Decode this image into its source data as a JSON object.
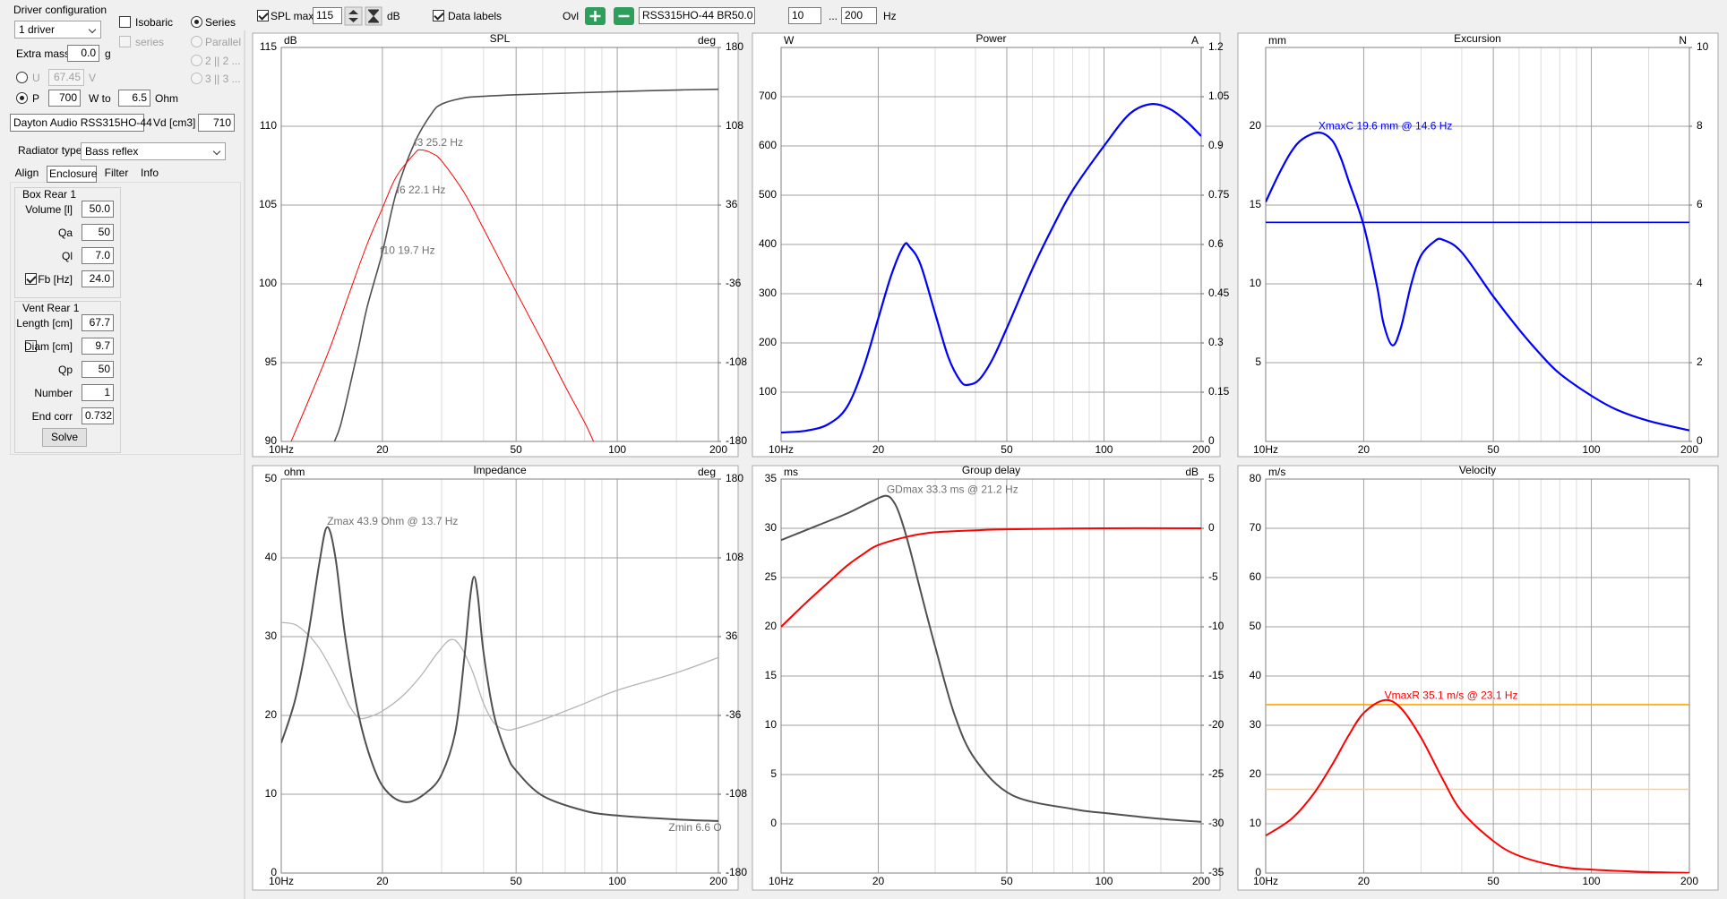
{
  "toolbar": {
    "spl_max": {
      "label": "SPL max",
      "checked": true,
      "value": "115",
      "unit": "dB"
    },
    "data_labels": {
      "label": "Data labels",
      "checked": true
    },
    "overlay": {
      "label": "Ovl",
      "name": "RSS315HO-44 BR50.0"
    },
    "freq_range": {
      "from": "10",
      "separator": "...",
      "to": "200",
      "unit": "Hz"
    }
  },
  "driver_config": {
    "title": "Driver configuration",
    "drivers": "1 driver",
    "isobaric": {
      "label": "Isobaric",
      "checked": false,
      "enabled": true
    },
    "series_check": {
      "label": "series",
      "checked": false,
      "enabled": false
    },
    "wiring": [
      {
        "label": "Series",
        "selected": true,
        "enabled": true
      },
      {
        "label": "Parallel",
        "selected": false,
        "enabled": false
      },
      {
        "label": "2 || 2 ...",
        "selected": false,
        "enabled": false
      },
      {
        "label": "3 || 3 ...",
        "selected": false,
        "enabled": false
      }
    ],
    "extra_mass": {
      "label": "Extra mass",
      "value": "0.0",
      "unit": "g"
    },
    "voltage": {
      "label": "U",
      "selected": false,
      "value": "67.45",
      "unit": "V"
    },
    "power": {
      "label": "P",
      "selected": true,
      "value": "700",
      "unit": "W to",
      "load": "6.5",
      "load_unit": "Ohm"
    },
    "driver": "Dayton Audio RSS315HO-44",
    "vd": {
      "label": "Vd [cm3]",
      "value": "710"
    }
  },
  "radiator": {
    "label": "Radiator type",
    "value": "Bass reflex"
  },
  "tabs": [
    {
      "label": "Align",
      "active": false
    },
    {
      "label": "Enclosure",
      "active": true
    },
    {
      "label": "Filter",
      "active": false
    },
    {
      "label": "Info",
      "active": false
    }
  ],
  "box": {
    "title": "Box Rear 1",
    "fields": [
      {
        "label": "Volume [l]",
        "value": "50.0"
      },
      {
        "label": "Qa",
        "value": "50"
      },
      {
        "label": "Ql",
        "value": "7.0"
      },
      {
        "label": "Fb [Hz]",
        "value": "24.0",
        "checked": true
      }
    ]
  },
  "vent": {
    "title": "Vent Rear 1",
    "fields": [
      {
        "label": "Length [cm]",
        "value": "67.7"
      },
      {
        "label": "Diam [cm]",
        "value": "9.7",
        "checked": false
      },
      {
        "label": "Qp",
        "value": "50"
      },
      {
        "label": "Number",
        "value": "1"
      },
      {
        "label": "End corr",
        "value": "0.732"
      }
    ]
  },
  "solve": "Solve",
  "chart_data": [
    {
      "type": "line",
      "title": "SPL",
      "y_unit": "dB",
      "y2_unit": "deg",
      "x_log": true,
      "grid": true,
      "xlim": [
        10,
        200
      ],
      "xticks": [
        {
          "value": 10,
          "label": "10Hz"
        },
        20,
        50,
        100,
        200
      ],
      "x_minor": [
        30,
        40,
        60,
        70,
        80,
        90,
        150
      ],
      "ylim": [
        90,
        115
      ],
      "yticks": [
        90,
        95,
        100,
        105,
        110,
        115
      ],
      "y2lim": [
        -180,
        180
      ],
      "y2ticks": [
        -180,
        -108,
        -36,
        36,
        108,
        180
      ],
      "series": [
        {
          "color": "#505050",
          "line_width": 1.6,
          "x": [
            14.4,
            15,
            16,
            17,
            18,
            20,
            22,
            25,
            28,
            30,
            35,
            40,
            50,
            70,
            100,
            150,
            200
          ],
          "values": [
            90,
            91,
            93.5,
            96,
            98.5,
            102,
            105.8,
            109,
            110.8,
            111.4,
            111.8,
            111.9,
            112,
            112.1,
            112.2,
            112.3,
            112.35
          ]
        },
        {
          "color": "#ff0000",
          "line_width": 1,
          "x": [
            10.7,
            12,
            14,
            16,
            18,
            20,
            22,
            25,
            26,
            28,
            30,
            35,
            40,
            50,
            60,
            70,
            80,
            85
          ],
          "values": [
            90,
            92.5,
            96,
            99.5,
            102.5,
            104.8,
            106.8,
            108.3,
            108.5,
            108.3,
            107.8,
            105.8,
            103.5,
            99.5,
            96.3,
            93.5,
            91.2,
            90
          ]
        }
      ],
      "annotation_color": "#707070",
      "annotations": [
        "f3 25.2 Hz",
        "f6 22.1 Hz",
        "f10 19.7 Hz"
      ]
    },
    {
      "type": "line",
      "title": "Power",
      "y_unit": "W",
      "y2_unit": "A",
      "x_log": true,
      "grid": true,
      "xlim": [
        10,
        200
      ],
      "xticks": [
        {
          "value": 10,
          "label": "10Hz"
        },
        20,
        50,
        100,
        200
      ],
      "x_minor": [
        30,
        40,
        60,
        70,
        80,
        90,
        150
      ],
      "ylim": [
        0,
        800
      ],
      "yticks": [
        100,
        200,
        300,
        400,
        500,
        600,
        700
      ],
      "y2lim": [
        0,
        1.2
      ],
      "y2ticks": [
        0,
        0.15,
        0.3,
        0.45,
        0.6,
        0.75,
        0.9,
        1.05,
        1.2
      ],
      "series": [
        {
          "color": "#0000ff",
          "line_width": 2.2,
          "x": [
            10,
            12,
            14,
            16,
            18,
            20,
            22,
            24,
            25,
            27,
            30,
            33,
            36,
            38,
            41,
            45,
            50,
            60,
            70,
            80,
            100,
            120,
            140,
            160,
            180,
            200
          ],
          "values": [
            18,
            22,
            35,
            70,
            150,
            250,
            340,
            398,
            395,
            360,
            260,
            170,
            122,
            115,
            125,
            165,
            230,
            350,
            440,
            510,
            600,
            665,
            685,
            675,
            650,
            620
          ]
        }
      ]
    },
    {
      "type": "line",
      "title": "Excursion",
      "y_unit": "mm",
      "y2_unit": "N",
      "x_log": true,
      "grid": true,
      "xlim": [
        10,
        200
      ],
      "xticks": [
        {
          "value": 10,
          "label": "10Hz"
        },
        20,
        50,
        100,
        200
      ],
      "x_minor": [
        30,
        40,
        60,
        70,
        80,
        90,
        150
      ],
      "ylim": [
        0,
        25
      ],
      "yticks": [
        5,
        10,
        15,
        20
      ],
      "y2lim": [
        0,
        10
      ],
      "y2ticks": [
        0,
        2,
        4,
        6,
        8,
        10
      ],
      "series": [
        {
          "color": "#0000ff",
          "line_width": 2.2,
          "x": [
            10,
            11,
            12,
            13,
            14.6,
            16,
            17,
            18,
            20,
            22,
            23,
            24.5,
            26,
            28,
            30,
            33,
            35,
            40,
            50,
            60,
            70,
            80,
            100,
            120,
            150,
            200
          ],
          "values": [
            15.2,
            17,
            18.4,
            19.2,
            19.6,
            19.1,
            18,
            16.5,
            13.7,
            9.8,
            7.5,
            6.1,
            7.2,
            10,
            11.8,
            12.7,
            12.8,
            12,
            9.2,
            7.1,
            5.5,
            4.3,
            2.9,
            2,
            1.3,
            0.7
          ]
        }
      ],
      "hlines": [
        {
          "value": 13.9,
          "color": "#0000ff"
        }
      ],
      "annotation_color": "#0000ff",
      "annotations": [
        "XmaxC 19.6 mm  @ 14.6 Hz"
      ]
    },
    {
      "type": "line",
      "title": "Impedance",
      "y_unit": "ohm",
      "y2_unit": "deg",
      "x_log": true,
      "grid": true,
      "xlim": [
        10,
        200
      ],
      "xticks": [
        {
          "value": 10,
          "label": "10Hz"
        },
        20,
        50,
        100,
        200
      ],
      "x_minor": [
        30,
        40,
        60,
        70,
        80,
        90,
        150
      ],
      "ylim": [
        0,
        50
      ],
      "yticks": [
        0,
        10,
        20,
        30,
        40,
        50
      ],
      "y2lim": [
        -180,
        180
      ],
      "y2ticks": [
        -180,
        -108,
        -36,
        36,
        108,
        180
      ],
      "series": [
        {
          "color": "#b4b4b4",
          "line_width": 1.3,
          "axis": "y2",
          "x": [
            10,
            11,
            12,
            13,
            14,
            15,
            16,
            17,
            18,
            20,
            23,
            26,
            29,
            31.8,
            34,
            37,
            40,
            43,
            46.6,
            50,
            60,
            80,
            100,
            150,
            200
          ],
          "values": [
            49,
            47,
            38,
            25,
            8,
            -10,
            -28,
            -38,
            -38,
            -32,
            -18,
            0,
            20,
            33,
            28,
            5,
            -25,
            -43,
            -49,
            -48,
            -40,
            -25,
            -13,
            3,
            17
          ]
        },
        {
          "color": "#505050",
          "line_width": 2,
          "x": [
            10,
            11,
            12,
            13,
            13.7,
            14.5,
            15.5,
            17,
            19,
            21,
            23.8,
            27,
            30,
            33,
            35,
            36.5,
            37.5,
            38.5,
            40,
            43,
            47,
            50,
            60,
            80,
            100,
            150,
            200
          ],
          "values": [
            16.5,
            22,
            30,
            39.5,
            43.9,
            40,
            30,
            20,
            13,
            10,
            9,
            10.2,
            12.5,
            18,
            27,
            35,
            37.6,
            35,
            28,
            20,
            15,
            13,
            9.8,
            7.9,
            7.3,
            6.8,
            6.6
          ]
        }
      ],
      "annotation_color": "#707070",
      "annotations": [
        "Zmax 43.9 Ohm @ 13.7 Hz",
        "Zmin 6.6 O"
      ]
    },
    {
      "type": "line",
      "title": "Group delay",
      "y_unit": "ms",
      "y2_unit": "dB",
      "x_log": true,
      "grid": true,
      "xlim": [
        10,
        200
      ],
      "xticks": [
        {
          "value": 10,
          "label": "10Hz"
        },
        20,
        50,
        100,
        200
      ],
      "x_minor": [
        30,
        40,
        60,
        70,
        80,
        90,
        150
      ],
      "ylim": [
        -5,
        35
      ],
      "yticks": [
        0,
        5,
        10,
        15,
        20,
        25,
        30,
        35
      ],
      "y2lim": [
        -35,
        5
      ],
      "y2ticks": [
        -35,
        -30,
        -25,
        -20,
        -15,
        -10,
        -5,
        0,
        5
      ],
      "series": [
        {
          "color": "#505050",
          "line_width": 2,
          "x": [
            10,
            13,
            16,
            19,
            21.2,
            22.5,
            23.5,
            25,
            27.2,
            30,
            34.5,
            40,
            52,
            80,
            100,
            150,
            200
          ],
          "values": [
            28.8,
            30.3,
            31.5,
            32.7,
            33.3,
            32.5,
            31,
            28,
            23.3,
            18,
            11,
            6.5,
            2.9,
            1.5,
            1.1,
            0.5,
            0.2
          ]
        },
        {
          "color": "#ff0000",
          "line_width": 2,
          "axis": "y2",
          "x": [
            10,
            12,
            14,
            16,
            18,
            20,
            25,
            30,
            40,
            50,
            100,
            200
          ],
          "values": [
            -10,
            -7.5,
            -5.5,
            -3.8,
            -2.6,
            -1.7,
            -0.8,
            -0.4,
            -0.2,
            -0.1,
            0,
            0
          ]
        }
      ],
      "annotation_color": "#707070",
      "annotations": [
        "GDmax 33.3 ms  @ 21.2 Hz"
      ]
    },
    {
      "type": "line",
      "title": "Velocity",
      "y_unit": "m/s",
      "x_log": true,
      "grid": true,
      "xlim": [
        10,
        200
      ],
      "xticks": [
        {
          "value": 10,
          "label": "10Hz"
        },
        20,
        50,
        100,
        200
      ],
      "x_minor": [
        30,
        40,
        60,
        70,
        80,
        90,
        150
      ],
      "ylim": [
        0,
        80
      ],
      "yticks": [
        0,
        10,
        20,
        30,
        40,
        50,
        60,
        70,
        80
      ],
      "series": [
        {
          "color": "#ff0000",
          "line_width": 2,
          "x": [
            10,
            12,
            14,
            16,
            18,
            20,
            23.1,
            26,
            30,
            35,
            40,
            50,
            60,
            80,
            100,
            150,
            200
          ],
          "values": [
            7.6,
            11,
            16,
            22,
            28,
            32.5,
            35.1,
            33.5,
            27.5,
            19,
            12.5,
            6.5,
            3.5,
            1.3,
            0.7,
            0.2,
            0.05
          ]
        }
      ],
      "hlines": [
        {
          "value": 34.2,
          "color": "#ffa500"
        },
        {
          "value": 17,
          "color": "#ffd080"
        }
      ],
      "annotation_color": "#ff0000",
      "annotations": [
        "VmaxR 35.1 m/s @ 23.1 Hz"
      ]
    }
  ]
}
